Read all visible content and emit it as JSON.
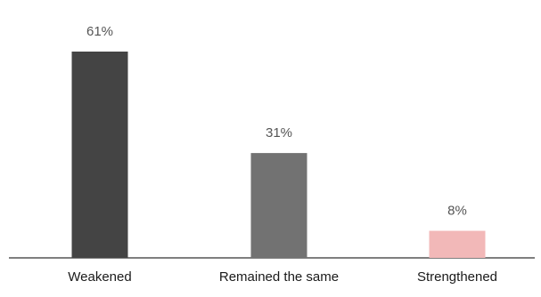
{
  "chart_data": {
    "type": "bar",
    "categories": [
      "Weakened",
      "Remained the same",
      "Strengthened"
    ],
    "values": [
      61,
      31,
      8
    ],
    "value_labels": [
      "61%",
      "31%",
      "8%"
    ],
    "unit": "%",
    "ylim": [
      0,
      61
    ],
    "grid": false,
    "legend": "none",
    "colors": [
      "#444444",
      "#727272",
      "#f2b8b8"
    ],
    "label_color": "#555555",
    "axis_color": "#555555"
  }
}
